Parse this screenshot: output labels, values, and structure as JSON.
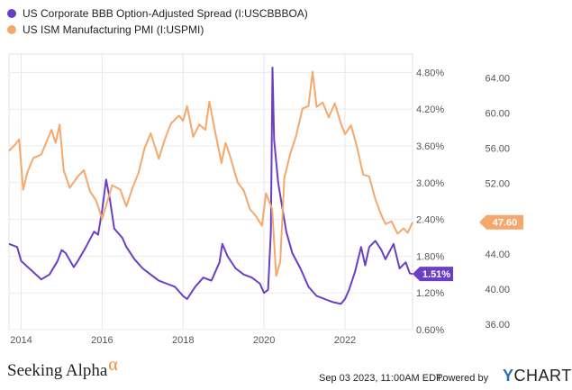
{
  "legend": [
    {
      "label": "US Corporate BBB Option-Adjusted Spread (I:USCBBBOA)",
      "color": "#6a3fc6"
    },
    {
      "label": "US ISM Manufacturing PMI (I:USPMI)",
      "color": "#f6a86c"
    }
  ],
  "footer": {
    "brand": "Seeking Alpha",
    "brand_symbol": "α",
    "timestamp": "Sep 03 2023, 11:00AM EDT.",
    "powered_by": "Powered by",
    "provider": "CHARTS",
    "provider_initial": "Y"
  },
  "chart_data": {
    "type": "line",
    "x_ticks": [
      "2014",
      "2016",
      "2018",
      "2020",
      "2022"
    ],
    "x_range": [
      2013.7,
      2023.67
    ],
    "y_left": {
      "ticks": [
        "0.60%",
        "1.20%",
        "1.80%",
        "2.40%",
        "3.00%",
        "3.60%",
        "4.20%",
        "4.80%"
      ],
      "range": [
        0.6,
        5.1
      ]
    },
    "y_right": {
      "ticks": [
        "36.00",
        "40.00",
        "44.00",
        "48.00",
        "52.00",
        "56.00",
        "60.00",
        "64.00"
      ],
      "range": [
        35.4,
        66.7
      ]
    },
    "series": [
      {
        "name": "US Corporate BBB Option-Adjusted Spread (I:USCBBBOA)",
        "axis": "left",
        "color": "#6a3fc6",
        "last_label": "1.51%",
        "points": [
          [
            2013.7,
            2.0
          ],
          [
            2013.9,
            1.95
          ],
          [
            2014.0,
            1.72
          ],
          [
            2014.2,
            1.6
          ],
          [
            2014.4,
            1.48
          ],
          [
            2014.5,
            1.42
          ],
          [
            2014.7,
            1.5
          ],
          [
            2014.9,
            1.72
          ],
          [
            2015.0,
            1.9
          ],
          [
            2015.1,
            1.85
          ],
          [
            2015.3,
            1.62
          ],
          [
            2015.4,
            1.72
          ],
          [
            2015.6,
            1.95
          ],
          [
            2015.8,
            2.2
          ],
          [
            2015.9,
            2.15
          ],
          [
            2016.0,
            2.55
          ],
          [
            2016.1,
            3.05
          ],
          [
            2016.2,
            2.7
          ],
          [
            2016.3,
            2.25
          ],
          [
            2016.5,
            2.1
          ],
          [
            2016.6,
            1.95
          ],
          [
            2016.8,
            1.75
          ],
          [
            2017.0,
            1.6
          ],
          [
            2017.2,
            1.5
          ],
          [
            2017.4,
            1.4
          ],
          [
            2017.6,
            1.35
          ],
          [
            2017.8,
            1.3
          ],
          [
            2018.0,
            1.15
          ],
          [
            2018.1,
            1.1
          ],
          [
            2018.3,
            1.3
          ],
          [
            2018.5,
            1.45
          ],
          [
            2018.7,
            1.4
          ],
          [
            2018.9,
            1.7
          ],
          [
            2018.97,
            2.0
          ],
          [
            2019.1,
            1.8
          ],
          [
            2019.3,
            1.6
          ],
          [
            2019.5,
            1.5
          ],
          [
            2019.7,
            1.45
          ],
          [
            2019.9,
            1.35
          ],
          [
            2020.0,
            1.2
          ],
          [
            2020.1,
            1.25
          ],
          [
            2020.17,
            2.2
          ],
          [
            2020.21,
            4.88
          ],
          [
            2020.25,
            3.7
          ],
          [
            2020.35,
            3.0
          ],
          [
            2020.45,
            2.6
          ],
          [
            2020.55,
            2.2
          ],
          [
            2020.7,
            1.85
          ],
          [
            2020.9,
            1.6
          ],
          [
            2021.1,
            1.3
          ],
          [
            2021.3,
            1.15
          ],
          [
            2021.5,
            1.1
          ],
          [
            2021.7,
            1.05
          ],
          [
            2021.9,
            1.02
          ],
          [
            2022.0,
            1.1
          ],
          [
            2022.1,
            1.25
          ],
          [
            2022.25,
            1.55
          ],
          [
            2022.4,
            1.95
          ],
          [
            2022.5,
            1.65
          ],
          [
            2022.6,
            1.95
          ],
          [
            2022.75,
            2.05
          ],
          [
            2022.9,
            1.9
          ],
          [
            2023.0,
            1.75
          ],
          [
            2023.2,
            2.0
          ],
          [
            2023.35,
            1.6
          ],
          [
            2023.5,
            1.7
          ],
          [
            2023.6,
            1.52
          ],
          [
            2023.67,
            1.51
          ]
        ]
      },
      {
        "name": "US ISM Manufacturing PMI (I:USPMI)",
        "axis": "right",
        "color": "#f6a86c",
        "last_label": "47.60",
        "points": [
          [
            2013.7,
            55.7
          ],
          [
            2013.85,
            56.4
          ],
          [
            2013.95,
            57.0
          ],
          [
            2014.05,
            51.3
          ],
          [
            2014.15,
            53.2
          ],
          [
            2014.3,
            54.9
          ],
          [
            2014.5,
            55.3
          ],
          [
            2014.65,
            57.0
          ],
          [
            2014.75,
            58.1
          ],
          [
            2014.85,
            56.6
          ],
          [
            2014.95,
            58.7
          ],
          [
            2015.05,
            53.5
          ],
          [
            2015.2,
            51.5
          ],
          [
            2015.4,
            52.8
          ],
          [
            2015.55,
            53.5
          ],
          [
            2015.7,
            51.1
          ],
          [
            2015.85,
            50.1
          ],
          [
            2016.0,
            48.0
          ],
          [
            2016.1,
            49.5
          ],
          [
            2016.25,
            51.8
          ],
          [
            2016.45,
            51.3
          ],
          [
            2016.6,
            49.4
          ],
          [
            2016.75,
            51.5
          ],
          [
            2016.9,
            53.2
          ],
          [
            2017.05,
            56.0
          ],
          [
            2017.2,
            57.7
          ],
          [
            2017.4,
            54.8
          ],
          [
            2017.55,
            57.0
          ],
          [
            2017.7,
            58.8
          ],
          [
            2017.9,
            59.7
          ],
          [
            2018.0,
            59.1
          ],
          [
            2018.1,
            60.8
          ],
          [
            2018.25,
            57.3
          ],
          [
            2018.4,
            58.7
          ],
          [
            2018.55,
            58.1
          ],
          [
            2018.65,
            61.3
          ],
          [
            2018.8,
            57.7
          ],
          [
            2018.95,
            54.3
          ],
          [
            2019.05,
            56.6
          ],
          [
            2019.15,
            55.3
          ],
          [
            2019.35,
            52.1
          ],
          [
            2019.5,
            51.2
          ],
          [
            2019.65,
            49.1
          ],
          [
            2019.8,
            48.3
          ],
          [
            2019.95,
            47.2
          ],
          [
            2020.05,
            50.9
          ],
          [
            2020.2,
            49.1
          ],
          [
            2020.3,
            41.5
          ],
          [
            2020.4,
            43.1
          ],
          [
            2020.5,
            52.6
          ],
          [
            2020.65,
            55.4
          ],
          [
            2020.8,
            57.5
          ],
          [
            2020.95,
            60.5
          ],
          [
            2021.1,
            60.8
          ],
          [
            2021.2,
            64.7
          ],
          [
            2021.3,
            60.7
          ],
          [
            2021.45,
            61.2
          ],
          [
            2021.6,
            59.5
          ],
          [
            2021.75,
            61.1
          ],
          [
            2021.9,
            58.8
          ],
          [
            2022.0,
            57.6
          ],
          [
            2022.15,
            58.6
          ],
          [
            2022.3,
            56.1
          ],
          [
            2022.45,
            53.0
          ],
          [
            2022.6,
            52.8
          ],
          [
            2022.75,
            50.2
          ],
          [
            2022.9,
            48.4
          ],
          [
            2023.0,
            47.4
          ],
          [
            2023.15,
            47.7
          ],
          [
            2023.3,
            46.3
          ],
          [
            2023.45,
            46.9
          ],
          [
            2023.55,
            46.4
          ],
          [
            2023.67,
            47.6
          ]
        ]
      }
    ],
    "grid": true,
    "legend_position": "top-left"
  }
}
